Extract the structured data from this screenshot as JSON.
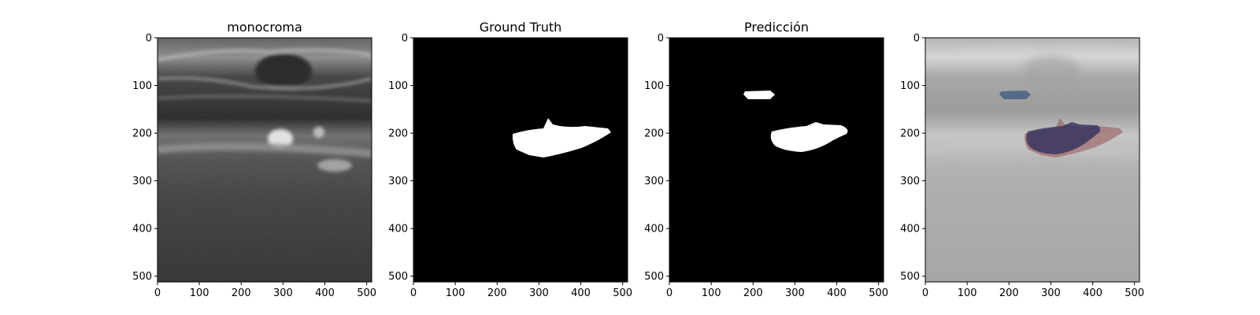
{
  "figure": {
    "panels": [
      {
        "title": "monocroma",
        "kind": "ultrasound"
      },
      {
        "title": "Ground Truth",
        "kind": "gt_mask"
      },
      {
        "title": "Predicción",
        "kind": "pred_mask"
      },
      {
        "title": "",
        "kind": "overlay"
      }
    ],
    "axis_range": {
      "x": [
        0,
        512
      ],
      "y": [
        0,
        512
      ]
    },
    "x_ticks": [
      0,
      100,
      200,
      300,
      400,
      500
    ],
    "y_ticks": [
      0,
      100,
      200,
      300,
      400,
      500
    ],
    "colors": {
      "mask_fill": "#ffffff",
      "mask_background": "#000000",
      "overlay_gt": "#8b3a3a",
      "overlay_pred": "#2a2a5a",
      "overlay_pred_small": "#3a5a80"
    }
  }
}
